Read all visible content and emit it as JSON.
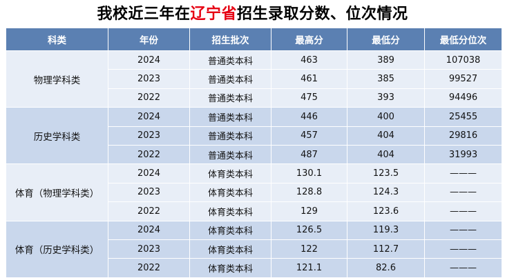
{
  "title": {
    "prefix": "我校近三年在",
    "highlight": "辽宁省",
    "suffix": "招生录取分数、位次情况"
  },
  "colors": {
    "header_bg": "#5b80b2",
    "row_light": "#e8eef7",
    "row_dark": "#c9d7ec",
    "highlight": "#e60012"
  },
  "headers": [
    "科类",
    "年份",
    "招生批次",
    "最高分",
    "最低分",
    "最低分位次"
  ],
  "groups": [
    {
      "category": "物理学科类",
      "rows": [
        {
          "year": "2024",
          "batch": "普通类本科",
          "max": "463",
          "min": "389",
          "rank": "107038"
        },
        {
          "year": "2023",
          "batch": "普通类本科",
          "max": "461",
          "min": "385",
          "rank": "99527"
        },
        {
          "year": "2022",
          "batch": "普通类本科",
          "max": "475",
          "min": "393",
          "rank": "94496"
        }
      ]
    },
    {
      "category": "历史学科类",
      "rows": [
        {
          "year": "2024",
          "batch": "普通类本科",
          "max": "446",
          "min": "400",
          "rank": "25455"
        },
        {
          "year": "2023",
          "batch": "普通类本科",
          "max": "457",
          "min": "404",
          "rank": "29816"
        },
        {
          "year": "2022",
          "batch": "普通类本科",
          "max": "487",
          "min": "404",
          "rank": "31993"
        }
      ]
    },
    {
      "category": "体育（物理学科类）",
      "rows": [
        {
          "year": "2024",
          "batch": "体育类本科",
          "max": "130.1",
          "min": "123.5",
          "rank": "———"
        },
        {
          "year": "2023",
          "batch": "体育类本科",
          "max": "128.8",
          "min": "124.3",
          "rank": "———"
        },
        {
          "year": "2022",
          "batch": "体育类本科",
          "max": "129",
          "min": "123.6",
          "rank": "———"
        }
      ]
    },
    {
      "category": "体育（历史学科类）",
      "rows": [
        {
          "year": "2024",
          "batch": "体育类本科",
          "max": "126.5",
          "min": "119.3",
          "rank": "———"
        },
        {
          "year": "2023",
          "batch": "体育类本科",
          "max": "122",
          "min": "112.7",
          "rank": "———"
        },
        {
          "year": "2022",
          "batch": "体育类本科",
          "max": "121.1",
          "min": "82.6",
          "rank": "———"
        }
      ]
    }
  ]
}
